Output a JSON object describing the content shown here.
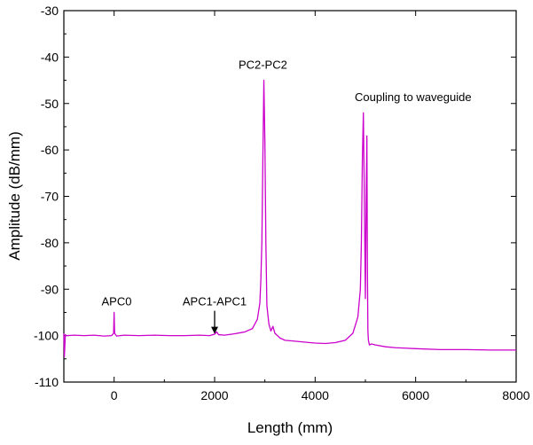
{
  "chart_data": {
    "type": "line",
    "title": "",
    "xlabel": "Length (mm)",
    "ylabel": "Amplitude (dB/mm)",
    "xlim": [
      -1000,
      8000
    ],
    "ylim": [
      -110,
      -30
    ],
    "x_ticks": [
      0,
      2000,
      4000,
      6000,
      8000
    ],
    "y_ticks": [
      -110,
      -100,
      -90,
      -80,
      -70,
      -60,
      -50,
      -40,
      -30
    ],
    "x_tick_labels": [
      "0",
      "2000",
      "4000",
      "6000",
      "8000"
    ],
    "y_tick_labels": [
      "-110",
      "-100",
      "-90",
      "-80",
      "-70",
      "-60",
      "-50",
      "-40",
      "-30"
    ],
    "grid": false,
    "legend": "none",
    "series": [
      {
        "color": "#cc00cc",
        "x": [
          -1000,
          -990,
          -970,
          -950,
          -800,
          -600,
          -400,
          -200,
          -50,
          -10,
          0,
          10,
          50,
          200,
          500,
          800,
          1100,
          1400,
          1700,
          1900,
          2000,
          2040,
          2080,
          2200,
          2400,
          2600,
          2750,
          2850,
          2900,
          2920,
          2940,
          2960,
          2980,
          3000,
          3020,
          3040,
          3080,
          3120,
          3160,
          3200,
          3300,
          3400,
          3600,
          3800,
          4000,
          4200,
          4400,
          4600,
          4750,
          4850,
          4900,
          4920,
          4940,
          4960,
          4980,
          5000,
          5020,
          5030,
          5040,
          5050,
          5060,
          5080,
          5120,
          5200,
          5400,
          5600,
          5800,
          6000,
          6500,
          7000,
          7500,
          8000
        ],
        "y": [
          -99.5,
          -104.5,
          -99.8,
          -100.0,
          -99.9,
          -100.0,
          -99.9,
          -100.1,
          -100.0,
          -99.5,
          -95.0,
          -99.5,
          -100.1,
          -99.9,
          -100.0,
          -99.9,
          -100.0,
          -100.0,
          -99.9,
          -100.0,
          -99.7,
          -99.2,
          -99.8,
          -99.9,
          -99.6,
          -99.2,
          -98.5,
          -96.5,
          -93.0,
          -88.0,
          -80.0,
          -62.0,
          -45.0,
          -58.0,
          -80.0,
          -93.5,
          -97.5,
          -99.0,
          -98.0,
          -99.5,
          -100.5,
          -101.0,
          -101.2,
          -101.4,
          -101.6,
          -101.7,
          -101.5,
          -101.0,
          -99.5,
          -96.0,
          -90.0,
          -80.0,
          -62.0,
          -52.0,
          -71.0,
          -92.0,
          -66.0,
          -57.0,
          -85.0,
          -99.0,
          -101.0,
          -102.0,
          -101.8,
          -102.0,
          -102.4,
          -102.6,
          -102.7,
          -102.8,
          -103.0,
          -103.0,
          -103.1,
          -103.1
        ]
      }
    ],
    "annotations": [
      {
        "text": "APC0",
        "x": 50,
        "y": -93.5,
        "arrow": false
      },
      {
        "text": "APC1-APC1",
        "x": 2000,
        "y": -93.5,
        "arrow": true,
        "arrow_target": [
          2000,
          -100
        ]
      },
      {
        "text": "PC2-PC2",
        "x": 2960,
        "y": -42.5,
        "arrow": false
      },
      {
        "text": "Coupling to waveguide",
        "x": 5950,
        "y": -49.5,
        "arrow": false
      }
    ]
  }
}
